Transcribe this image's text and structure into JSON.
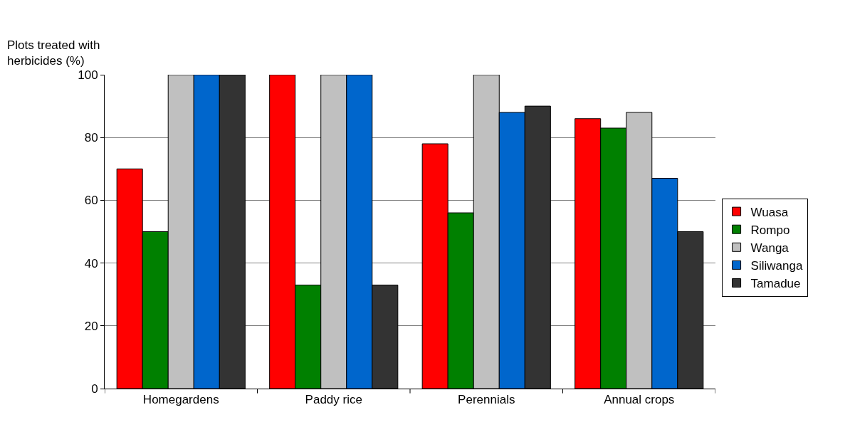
{
  "chart_data": {
    "type": "bar",
    "ylabel": "Plots treated with herbicides (%)",
    "categories": [
      "Homegardens",
      "Paddy rice",
      "Perennials",
      "Annual crops"
    ],
    "series": [
      {
        "name": "Wuasa",
        "color": "#ff0000",
        "values": [
          70,
          100,
          78,
          86
        ]
      },
      {
        "name": "Rompo",
        "color": "#008000",
        "values": [
          50,
          33,
          56,
          83
        ]
      },
      {
        "name": "Wanga",
        "color": "#c0c0c0",
        "values": [
          100,
          100,
          100,
          88
        ]
      },
      {
        "name": "Siliwanga",
        "color": "#0066cc",
        "values": [
          100,
          100,
          88,
          67
        ]
      },
      {
        "name": "Tamadue",
        "color": "#333333",
        "values": [
          100,
          33,
          90,
          50
        ]
      }
    ],
    "ylim": [
      0,
      100
    ],
    "yticks": [
      0,
      20,
      40,
      60,
      80,
      100
    ],
    "grid": "y",
    "legend": "right"
  }
}
